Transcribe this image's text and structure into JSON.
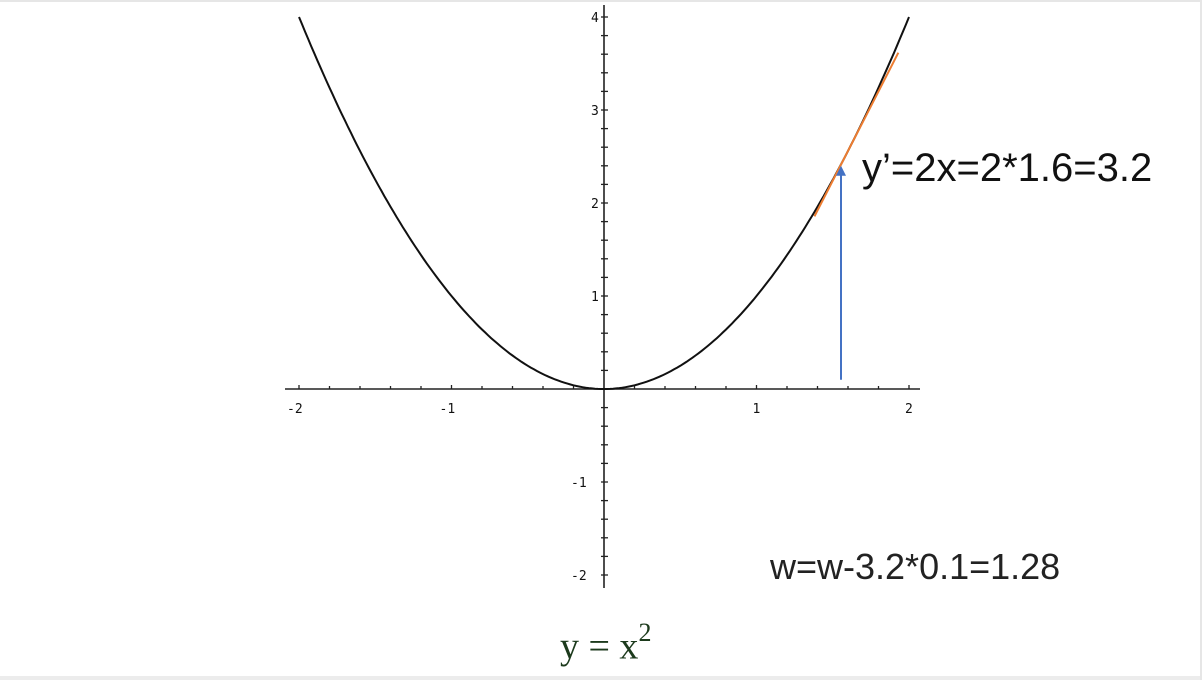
{
  "chart_data": {
    "type": "line",
    "function": "y = x^2",
    "xlim": [
      -2,
      2
    ],
    "ylim": [
      -2,
      4
    ],
    "x_ticks": [
      -2,
      -1,
      1,
      2
    ],
    "x_tick_labels": [
      "-2",
      "-1",
      "1",
      "2"
    ],
    "y_ticks": [
      -2,
      -1,
      1,
      2,
      3,
      4
    ],
    "y_tick_labels": [
      "-2",
      "-1",
      "1",
      "2",
      "3",
      "4"
    ],
    "minor_tick_step": 0.2,
    "grid": false,
    "series": [
      {
        "x": [
          -2,
          -1.6,
          -1.2,
          -0.8,
          -0.4,
          0,
          0.4,
          0.8,
          1.2,
          1.6,
          2
        ],
        "y": [
          4,
          2.56,
          1.44,
          0.64,
          0.16,
          0,
          0.16,
          0.64,
          1.44,
          2.56,
          4
        ],
        "color": "#111111"
      }
    ],
    "tangent": {
      "at_x": 1.6,
      "at_y": 2.56,
      "slope": 3.2,
      "x_range": [
        1.38,
        1.93
      ],
      "color": "#ed7d31"
    },
    "arrow": {
      "x": 1.6,
      "y_from": 0.1,
      "y_to": 2.4,
      "color": "#4472c4"
    },
    "caption": {
      "base": "y = x",
      "exponent": "2"
    }
  },
  "annotations": {
    "derivative": "y’=2x=2*1.6=3.2",
    "update": "w=w-3.2*0.1=1.28"
  }
}
